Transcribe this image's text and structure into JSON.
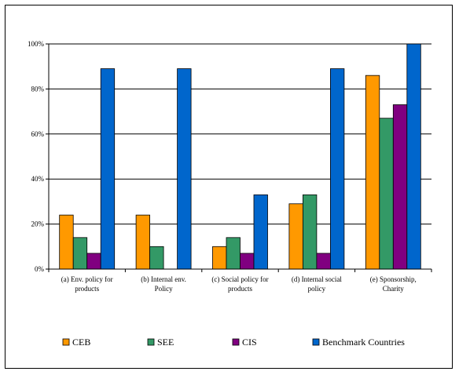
{
  "chart_data": {
    "type": "bar",
    "categories": [
      [
        "(a) Env. policy for",
        "products"
      ],
      [
        "(b) Internal env.",
        "Policy"
      ],
      [
        "(c) Social policy for",
        "products"
      ],
      [
        "(d) Internal social",
        "policy"
      ],
      [
        "(e) Sponsorship,",
        "Charity"
      ]
    ],
    "series": [
      {
        "name": "CEB",
        "color": "#FF9900",
        "values": [
          24,
          24,
          10,
          29,
          86
        ]
      },
      {
        "name": "SEE",
        "color": "#339966",
        "values": [
          14,
          10,
          14,
          33,
          67
        ]
      },
      {
        "name": "CIS",
        "color": "#800080",
        "values": [
          7,
          0,
          7,
          7,
          73
        ]
      },
      {
        "name": "Benchmark Countries",
        "color": "#0066CC",
        "values": [
          89,
          89,
          33,
          89,
          100
        ]
      }
    ],
    "ylim": [
      0,
      100
    ],
    "yticks": [
      "0%",
      "20%",
      "40%",
      "60%",
      "80%",
      "100%"
    ],
    "grid": true,
    "legend": "bottom"
  }
}
